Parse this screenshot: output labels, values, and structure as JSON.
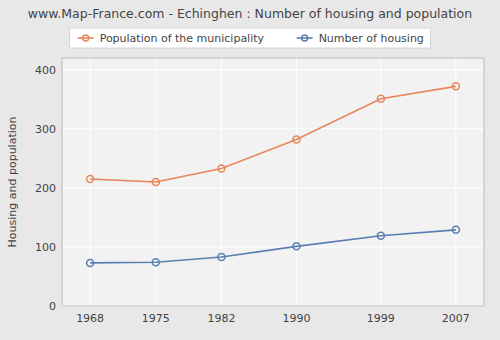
{
  "chart_data": {
    "type": "line",
    "title": "www.Map-France.com - Echinghen : Number of housing and population",
    "ylabel": "Housing and population",
    "x": [
      1968,
      1975,
      1982,
      1990,
      1999,
      2007
    ],
    "series": [
      {
        "name": "Population of the municipality",
        "color": "#e8855a",
        "marker": "circle",
        "values": [
          215,
          210,
          233,
          282,
          351,
          372
        ]
      },
      {
        "name": "Number of housing",
        "color": "#5b7db1",
        "marker": "circle",
        "values": [
          73,
          74,
          83,
          101,
          119,
          129
        ]
      }
    ],
    "xlim": [
      1965,
      2010
    ],
    "xticks": [
      1968,
      1975,
      1982,
      1990,
      1999,
      2007
    ],
    "ylim": [
      0,
      420
    ],
    "yticks": [
      0,
      100,
      200,
      300,
      400
    ],
    "grid": true,
    "legend": "top"
  }
}
